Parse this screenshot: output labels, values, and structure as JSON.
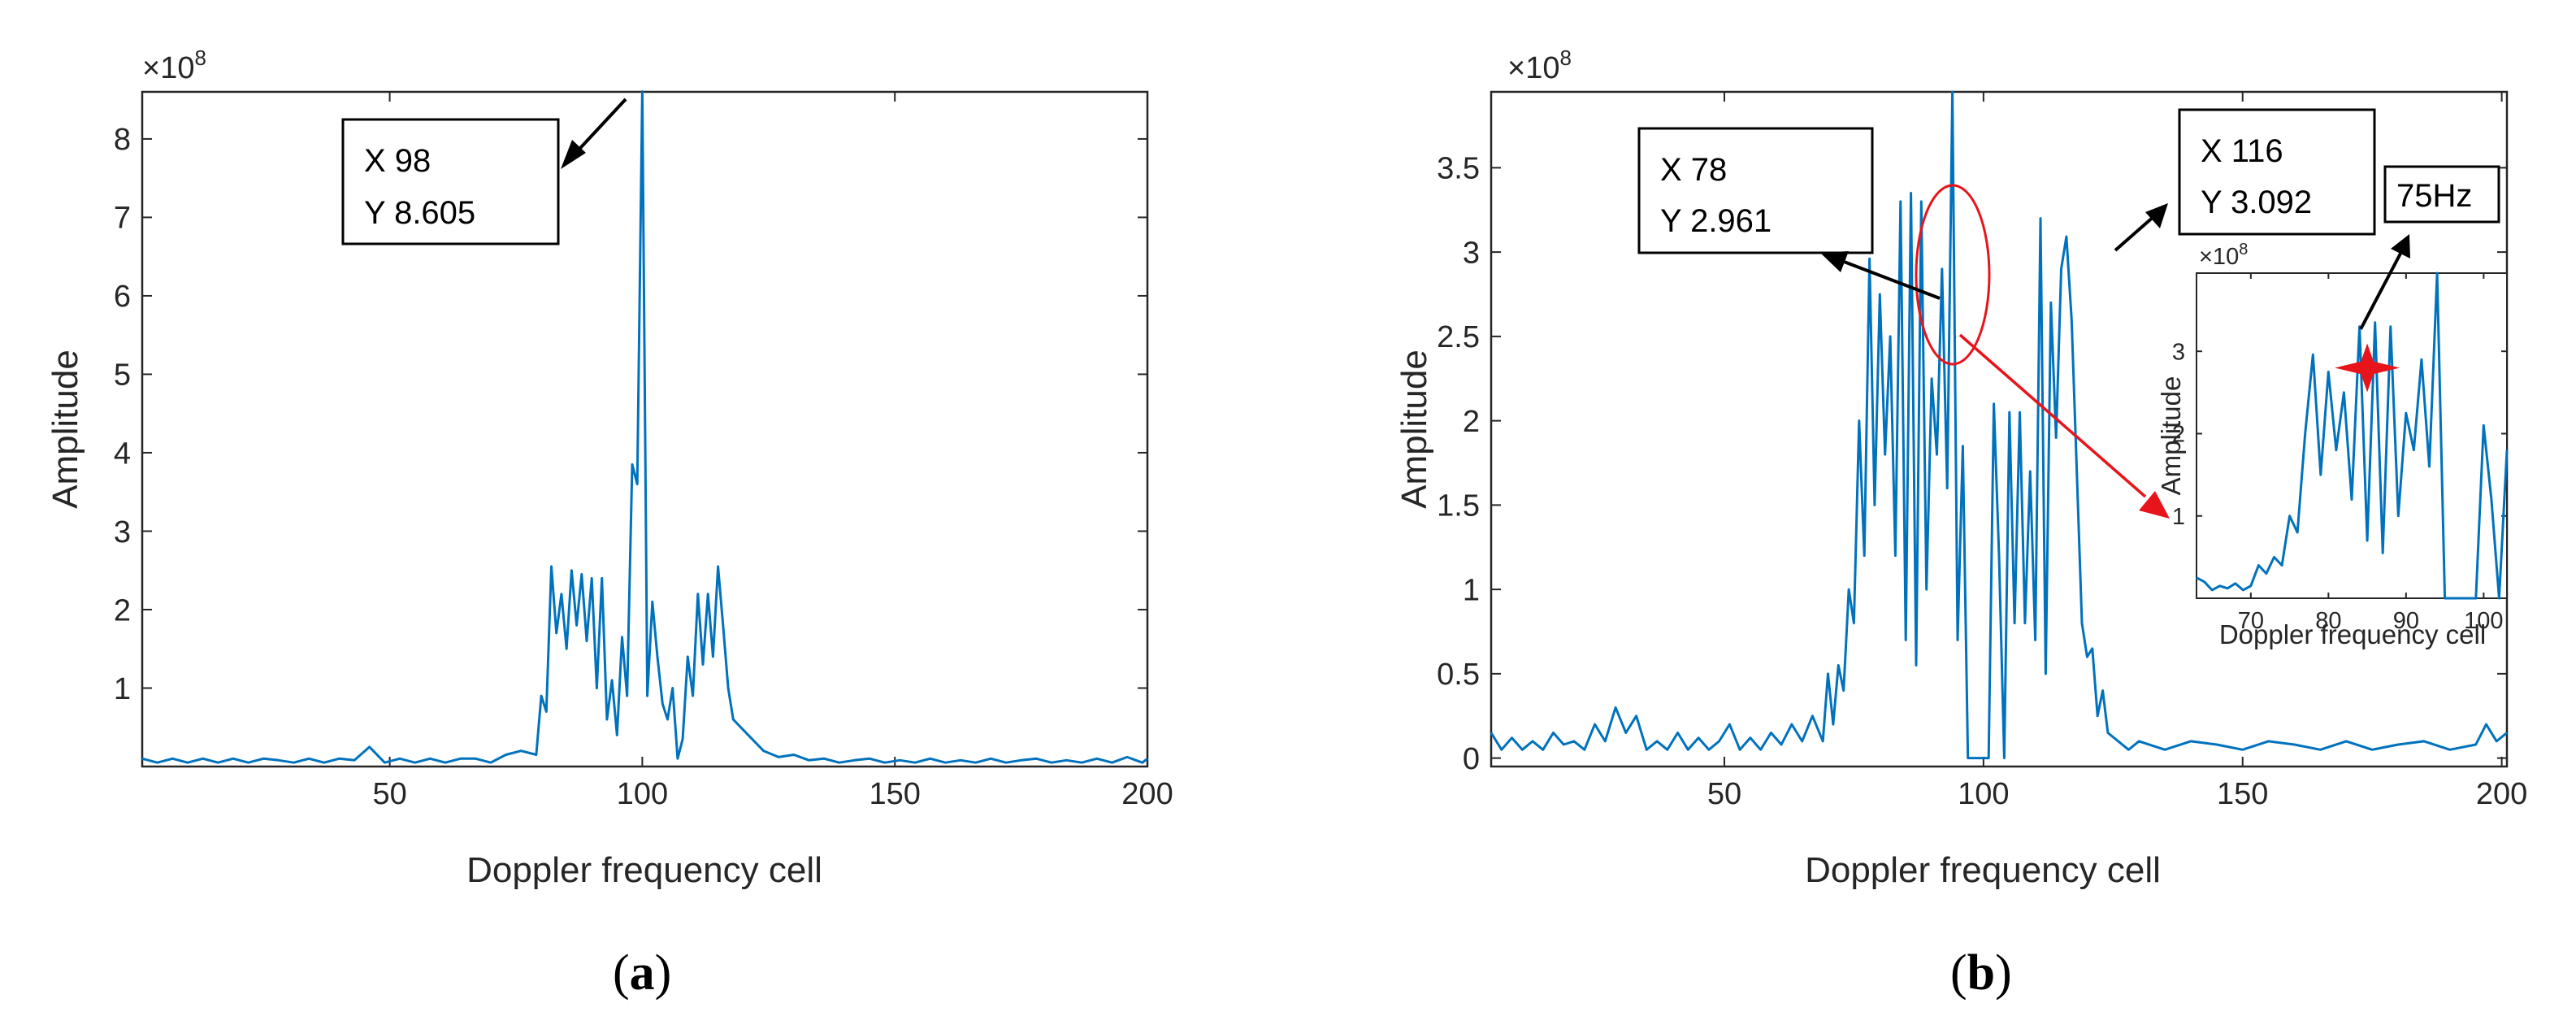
{
  "colors": {
    "series": "#0072BD",
    "highlight": "#E8141B",
    "axis": "#262626"
  },
  "chart_data": [
    {
      "id": "a",
      "type": "line",
      "panel_label": "a",
      "xlabel": "Doppler frequency cell",
      "ylabel": "Amplitude",
      "y_exponent": "×10",
      "y_exponent_power": "8",
      "xlim": [
        1,
        200
      ],
      "ylim": [
        0,
        8.6
      ],
      "xticks": [
        50,
        100,
        150,
        200
      ],
      "yticks": [
        1,
        2,
        3,
        4,
        5,
        6,
        7,
        8
      ],
      "grid": false,
      "annotations": [
        {
          "lines": [
            "X 98",
            "Y 8.605"
          ]
        }
      ],
      "series": [
        {
          "x": [
            1,
            4,
            7,
            10,
            13,
            16,
            19,
            22,
            25,
            28,
            31,
            34,
            37,
            40,
            43,
            46,
            49,
            52,
            55,
            58,
            61,
            64,
            67,
            70,
            73,
            76,
            79,
            80,
            81,
            82,
            83,
            84,
            85,
            86,
            87,
            88,
            89,
            90,
            91,
            92,
            93,
            94,
            95,
            96,
            97,
            98,
            99,
            100,
            101,
            102,
            103,
            104,
            105,
            106,
            107,
            108,
            109,
            110,
            111,
            112,
            113,
            114,
            115,
            116,
            117,
            118,
            121,
            124,
            127,
            130,
            133,
            136,
            139,
            142,
            145,
            148,
            151,
            154,
            157,
            160,
            163,
            166,
            169,
            172,
            175,
            178,
            181,
            184,
            187,
            190,
            193,
            196,
            199,
            200
          ],
          "y": [
            0.1,
            0.05,
            0.1,
            0.05,
            0.1,
            0.05,
            0.1,
            0.05,
            0.1,
            0.08,
            0.05,
            0.1,
            0.05,
            0.1,
            0.08,
            0.25,
            0.05,
            0.1,
            0.05,
            0.1,
            0.05,
            0.1,
            0.1,
            0.05,
            0.15,
            0.2,
            0.15,
            0.9,
            0.7,
            2.55,
            1.7,
            2.2,
            1.5,
            2.5,
            1.8,
            2.45,
            1.6,
            2.4,
            1.0,
            2.4,
            0.6,
            1.1,
            0.4,
            1.65,
            0.9,
            3.85,
            3.6,
            8.605,
            0.9,
            2.1,
            1.4,
            0.8,
            0.6,
            1.0,
            0.1,
            0.35,
            1.4,
            0.9,
            2.2,
            1.3,
            2.2,
            1.4,
            2.55,
            1.8,
            1.0,
            0.6,
            0.4,
            0.2,
            0.12,
            0.15,
            0.08,
            0.1,
            0.05,
            0.08,
            0.1,
            0.05,
            0.08,
            0.05,
            0.1,
            0.05,
            0.08,
            0.05,
            0.1,
            0.05,
            0.08,
            0.1,
            0.05,
            0.08,
            0.05,
            0.1,
            0.05,
            0.12,
            0.05,
            0.1
          ]
        }
      ]
    },
    {
      "id": "b",
      "type": "line",
      "panel_label": "b",
      "xlabel": "Doppler frequency cell",
      "ylabel": "Amplitude",
      "y_exponent": "×10",
      "y_exponent_power": "8",
      "xlim": [
        5,
        201
      ],
      "ylim": [
        -0.05,
        3.95
      ],
      "xticks": [
        50,
        100,
        150,
        200
      ],
      "yticks": [
        0,
        0.5,
        1,
        1.5,
        2,
        2.5,
        3,
        3.5
      ],
      "ytick_labels": [
        "0",
        "0.5",
        "1",
        "1.5",
        "2",
        "2.5",
        "3",
        "3.5"
      ],
      "grid": false,
      "annotations": [
        {
          "lines": [
            "X 78",
            "Y 2.961"
          ]
        },
        {
          "lines": [
            "X 116",
            "Y 3.092"
          ]
        },
        {
          "lines": [
            "75Hz"
          ]
        }
      ],
      "series": [
        {
          "x": [
            5,
            7,
            9,
            11,
            13,
            15,
            17,
            19,
            21,
            23,
            25,
            27,
            29,
            31,
            33,
            35,
            37,
            39,
            41,
            43,
            45,
            47,
            49,
            51,
            53,
            55,
            57,
            59,
            61,
            63,
            65,
            67,
            69,
            70,
            71,
            72,
            73,
            74,
            75,
            76,
            77,
            78,
            79,
            80,
            81,
            82,
            83,
            84,
            85,
            86,
            87,
            88,
            89,
            90,
            91,
            92,
            93,
            94,
            95,
            96,
            97,
            98,
            99,
            100,
            101,
            102,
            103,
            104,
            105,
            106,
            107,
            108,
            109,
            110,
            111,
            112,
            113,
            114,
            115,
            116,
            117,
            118,
            119,
            120,
            121,
            122,
            123,
            124,
            126,
            128,
            130,
            135,
            140,
            145,
            150,
            155,
            160,
            165,
            170,
            175,
            180,
            185,
            190,
            195,
            197,
            199,
            201
          ],
          "y": [
            0.15,
            0.05,
            0.12,
            0.05,
            0.1,
            0.05,
            0.15,
            0.08,
            0.1,
            0.05,
            0.2,
            0.1,
            0.3,
            0.15,
            0.25,
            0.05,
            0.1,
            0.05,
            0.15,
            0.05,
            0.12,
            0.05,
            0.1,
            0.2,
            0.05,
            0.12,
            0.05,
            0.15,
            0.08,
            0.2,
            0.1,
            0.25,
            0.1,
            0.5,
            0.2,
            0.55,
            0.4,
            1.0,
            0.8,
            2.0,
            1.2,
            2.961,
            1.5,
            2.75,
            1.8,
            2.5,
            1.2,
            3.3,
            0.7,
            3.35,
            0.55,
            3.3,
            1.0,
            2.25,
            1.8,
            2.9,
            1.6,
            3.95,
            0.7,
            1.85,
            0.0,
            0.0,
            0.0,
            0.0,
            0.0,
            2.1,
            1.2,
            0.0,
            2.05,
            0.8,
            2.05,
            0.8,
            1.7,
            0.7,
            3.2,
            0.5,
            2.7,
            1.9,
            2.9,
            3.092,
            2.6,
            1.7,
            0.8,
            0.6,
            0.65,
            0.25,
            0.4,
            0.15,
            0.1,
            0.05,
            0.1,
            0.05,
            0.1,
            0.08,
            0.05,
            0.1,
            0.08,
            0.05,
            0.1,
            0.05,
            0.08,
            0.1,
            0.05,
            0.08,
            0.2,
            0.1,
            0.15
          ]
        }
      ],
      "inset": {
        "type": "line",
        "xlabel": "Doppler frequency cell",
        "ylabel": "Amplitude",
        "y_exponent": "×10",
        "y_exponent_power": "8",
        "xlim": [
          63,
          103
        ],
        "ylim": [
          0,
          3.95
        ],
        "xticks": [
          70,
          80,
          90,
          100
        ],
        "yticks": [
          1,
          2,
          3
        ],
        "marker": {
          "x": 85,
          "y": 2.8,
          "symbol": "star"
        },
        "series": [
          {
            "x": [
              63,
              64,
              65,
              66,
              67,
              68,
              69,
              70,
              71,
              72,
              73,
              74,
              75,
              76,
              77,
              78,
              79,
              80,
              81,
              82,
              83,
              84,
              85,
              86,
              87,
              88,
              89,
              90,
              91,
              92,
              93,
              94,
              95,
              96,
              97,
              98,
              99,
              100,
              101,
              102,
              103
            ],
            "y": [
              0.25,
              0.2,
              0.1,
              0.15,
              0.12,
              0.18,
              0.1,
              0.15,
              0.4,
              0.3,
              0.5,
              0.4,
              1.0,
              0.8,
              2.0,
              2.961,
              1.5,
              2.75,
              1.8,
              2.5,
              1.2,
              3.3,
              0.7,
              3.35,
              0.55,
              3.3,
              1.0,
              2.25,
              1.8,
              2.9,
              1.6,
              3.95,
              0.0,
              0.0,
              0.0,
              0.0,
              0.0,
              2.1,
              1.2,
              0.0,
              1.8
            ]
          }
        ]
      }
    }
  ]
}
